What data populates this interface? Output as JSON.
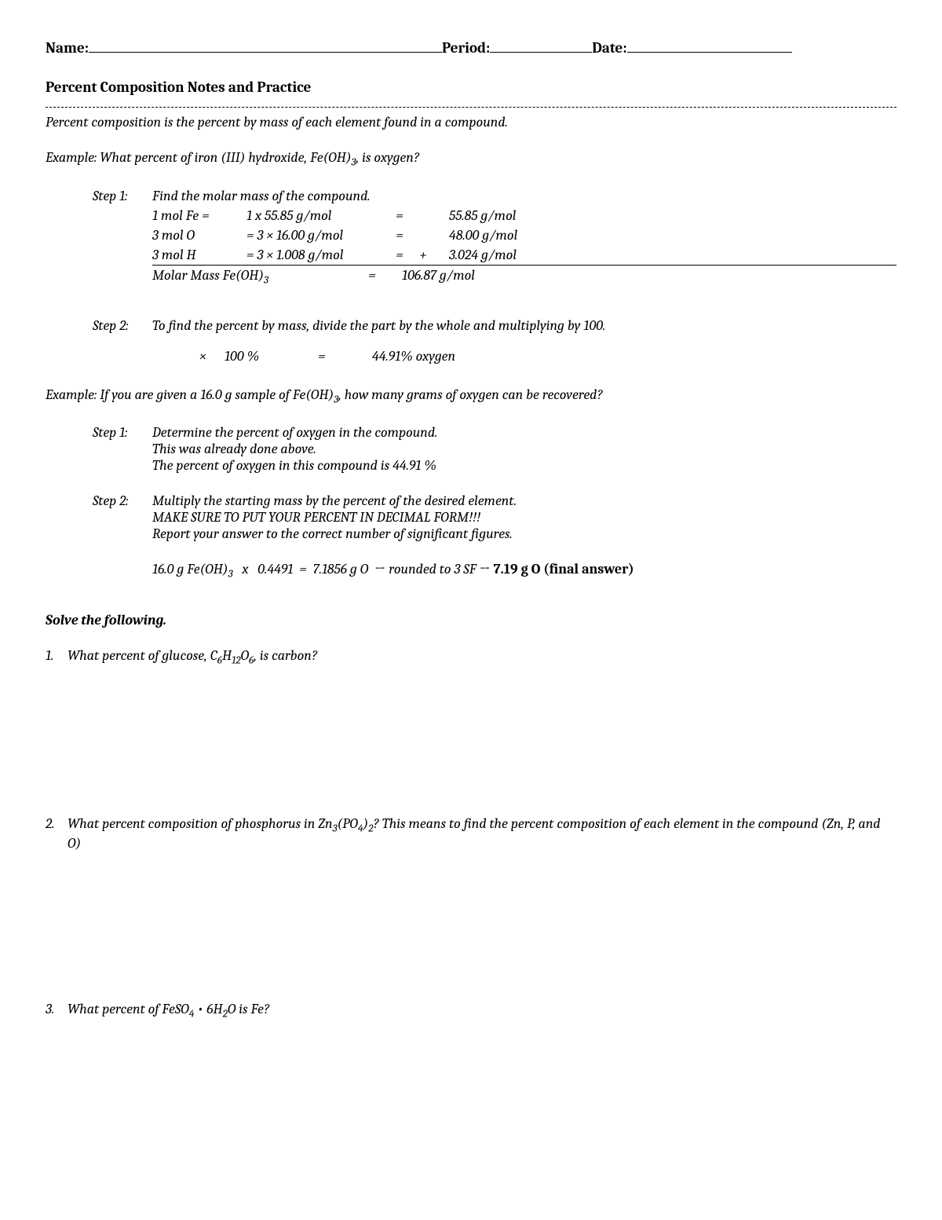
{
  "header": {
    "name_label": "Name:",
    "period_label": "Period:",
    "date_label": "Date:"
  },
  "title": "Percent Composition Notes and Practice",
  "definition": "Percent composition is the percent by mass of each element found in a compound.",
  "example1": {
    "prompt_prefix": "Example: What percent of iron (III) hydroxide, Fe(OH)",
    "prompt_sub": "3",
    "prompt_suffix": ", is oxygen?",
    "step1_label": "Step 1:",
    "step1_text": "Find the molar mass of the compound.",
    "rows": [
      {
        "c1": "1 mol Fe =",
        "c2": "1 x 55.85 g/mol",
        "c3": "=",
        "c4": "",
        "c5": "55.85 g/mol"
      },
      {
        "c1": "3 mol O",
        "c2": "=  3 × 16.00 g/mol",
        "c3": "=",
        "c4": "",
        "c5": "48.00 g/mol"
      },
      {
        "c1": "3 mol H",
        "c2": "=  3 × 1.008 g/mol",
        "c3": "=",
        "c4": "+",
        "c5": "3.024 g/mol"
      }
    ],
    "total_label_prefix": "Molar Mass Fe(OH)",
    "total_label_sub": "3",
    "total_eq": "=",
    "total_val": "106.87 g/mol",
    "step2_label": "Step 2:",
    "step2_text": "To find the percent by mass, divide the part by the whole and multiplying by 100.",
    "calc_x": "×",
    "calc_100": "100 %",
    "calc_eq": "=",
    "calc_ans": "44.91% oxygen"
  },
  "example2": {
    "prompt_prefix": "Example:  If you are given a 16.0 g sample of Fe(OH)",
    "prompt_sub": "3",
    "prompt_suffix": ", how many grams of oxygen can be recovered?",
    "step1_label": "Step 1:",
    "step1_line1": "Determine the percent of oxygen in the compound.",
    "step1_line2": "This was already done above.",
    "step1_line3": "The percent of oxygen in this compound is 44.91 %",
    "step2_label": "Step 2:",
    "step2_line1": "Multiply the starting mass by the percent of the desired element.",
    "step2_line2": "MAKE SURE TO PUT YOUR PERCENT IN DECIMAL FORM!!!",
    "step2_line3": "Report your answer to the correct number of significant figures.",
    "final_prefix": "16.0 g Fe(OH)",
    "final_sub": "3",
    "final_mid": "   x   0.4491  =  7.1856 g O  ",
    "final_arrow1": "→",
    "final_rounded": " rounded to 3 SF ",
    "final_arrow2": "→",
    "final_answer": " 7.19 g O (final answer)"
  },
  "solve_heading": "Solve the following.",
  "questions": {
    "q1": {
      "num": "1.",
      "prefix": "What percent of glucose, C",
      "s1": "6",
      "mid1": "H",
      "s2": "12",
      "mid2": "O",
      "s3": "6",
      "suffix": ", is carbon?"
    },
    "q2": {
      "num": "2.",
      "prefix": "What percent composition of phosphorus in Zn",
      "s1": "3",
      "mid1": "(PO",
      "s2": "4",
      "mid2": ")",
      "s3": "2",
      "suffix": "?  This means to find the percent composition of each element in the compound (Zn, P, and O)"
    },
    "q3": {
      "num": "3.",
      "prefix": "What percent of FeSO",
      "s1": "4",
      "mid1": " • 6H",
      "s2": "2",
      "mid2": "O is Fe?",
      "s3": "",
      "suffix": ""
    }
  }
}
